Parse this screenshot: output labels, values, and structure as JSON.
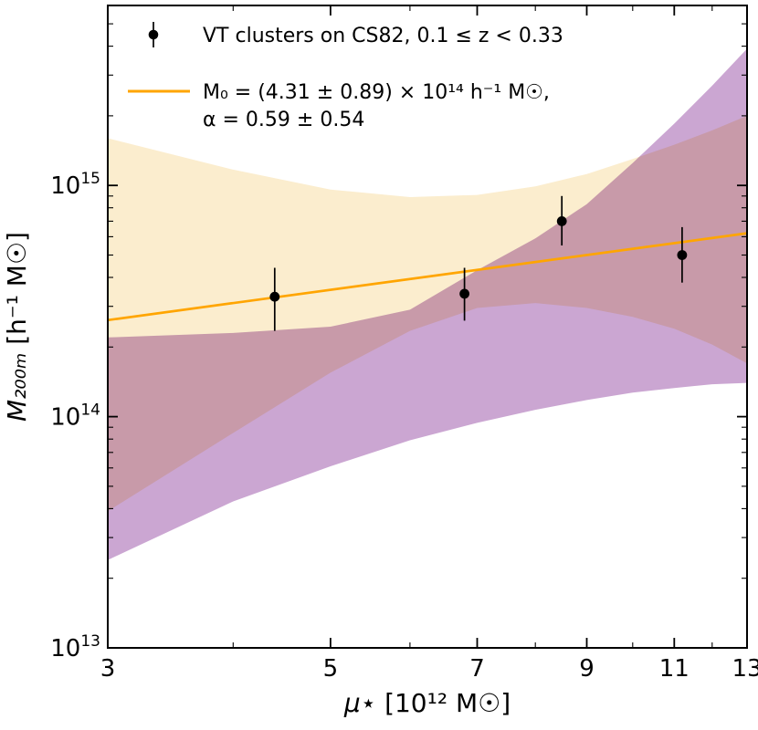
{
  "page": {
    "background": "#ffffff"
  },
  "colors": {
    "fit_line": "#FFA500",
    "marker": "#000000",
    "axis": "#000000",
    "band_yellow": "#FBEDCE",
    "band_purple": "#CBA6D2"
  },
  "legend": {
    "data_label": "VT clusters on CS82,  0.1 ≤ z < 0.33",
    "fit_label_line1": "M₀ = (4.31 ± 0.89) × 10¹⁴ h⁻¹ M☉,",
    "fit_label_line2": "α = 0.59 ± 0.54"
  },
  "axes": {
    "x_label_math": "μ⋆",
    "x_label_units": " [10¹² M☉]",
    "y_label_math": "M₂₀₀ₘ",
    "y_label_units": " [h⁻¹ M☉]",
    "x_scale": "log",
    "y_scale": "log",
    "x_ticks": [
      3,
      5,
      7,
      9,
      11,
      13
    ],
    "x_minor_ticks": [
      4,
      6,
      8,
      10,
      12
    ],
    "y_ticks": [
      {
        "value": 10000000000000.0,
        "exp": "13"
      },
      {
        "value": 100000000000000.0,
        "exp": "14"
      },
      {
        "value": 1000000000000000.0,
        "exp": "15"
      }
    ],
    "y_minor_mantissas": [
      2,
      3,
      4,
      5,
      6,
      7,
      8,
      9
    ]
  },
  "chart_data": {
    "type": "scatter",
    "title": "",
    "xlabel": "μ⋆ [10¹² M☉]",
    "ylabel": "M₂₀₀ₘ [h⁻¹ M☉]",
    "x_scale": "log",
    "y_scale": "log",
    "xlim": [
      3,
      13
    ],
    "ylim": [
      10000000000000.0,
      6000000000000000.0
    ],
    "legend_position": "upper-left",
    "grid": false,
    "points": [
      {
        "mu_star": 4.4,
        "M200m": 330000000000000.0,
        "err_lo": 235000000000000.0,
        "err_hi": 440000000000000.0
      },
      {
        "mu_star": 6.8,
        "M200m": 340000000000000.0,
        "err_lo": 260000000000000.0,
        "err_hi": 440000000000000.0
      },
      {
        "mu_star": 8.5,
        "M200m": 700000000000000.0,
        "err_lo": 550000000000000.0,
        "err_hi": 900000000000000.0
      },
      {
        "mu_star": 11.2,
        "M200m": 500000000000000.0,
        "err_lo": 380000000000000.0,
        "err_hi": 660000000000000.0
      }
    ],
    "fit": {
      "M0": 431000000000000.0,
      "M0_err": 89000000000000.0,
      "alpha": 0.59,
      "alpha_err": 0.54,
      "pivot_mu": 7.0
    },
    "bands": [
      {
        "name": "band-fit-uncertainty-yellow",
        "color": "#FBEDCE",
        "mu": [
          3,
          4,
          5,
          6,
          7,
          8,
          9,
          10,
          11,
          12,
          13
        ],
        "lower": [
          39000000000000.0,
          85000000000000.0,
          155000000000000.0,
          235000000000000.0,
          295000000000000.0,
          310000000000000.0,
          295000000000000.0,
          270000000000000.0,
          240000000000000.0,
          205000000000000.0,
          170000000000000.0
        ],
        "upper": [
          1600000000000000.0,
          1170000000000000.0,
          960000000000000.0,
          890000000000000.0,
          910000000000000.0,
          990000000000000.0,
          1120000000000000.0,
          1300000000000000.0,
          1500000000000000.0,
          1730000000000000.0,
          2000000000000000.0
        ]
      },
      {
        "name": "band-comparison-purple",
        "color": "#CBA6D2",
        "mu": [
          3,
          4,
          5,
          6,
          7,
          8,
          9,
          10,
          11,
          12,
          13
        ],
        "lower": [
          24000000000000.0,
          43000000000000.0,
          61000000000000.0,
          79000000000000.0,
          94000000000000.0,
          107000000000000.0,
          118000000000000.0,
          127000000000000.0,
          133000000000000.0,
          138000000000000.0,
          140000000000000.0
        ],
        "upper": [
          220000000000000.0,
          230000000000000.0,
          245000000000000.0,
          290000000000000.0,
          430000000000000.0,
          590000000000000.0,
          830000000000000.0,
          1250000000000000.0,
          1850000000000000.0,
          2700000000000000.0,
          3900000000000000.0
        ]
      }
    ]
  }
}
